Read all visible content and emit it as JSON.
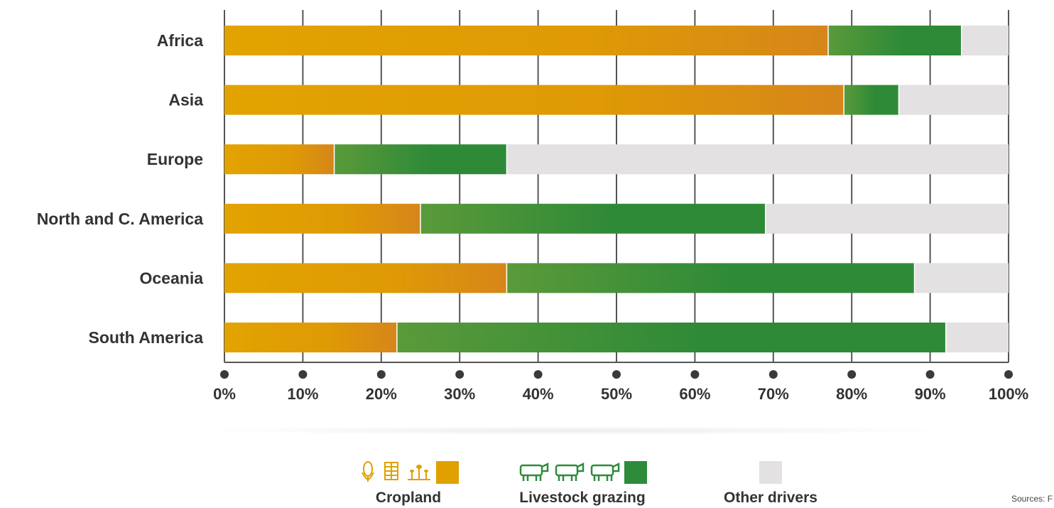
{
  "chart_data": {
    "type": "bar",
    "orientation": "horizontal",
    "stacked": true,
    "categories": [
      "Africa",
      "Asia",
      "Europe",
      "North and C. America",
      "Oceania",
      "South America"
    ],
    "series": [
      {
        "name": "Cropland",
        "values": [
          77,
          79,
          14,
          25,
          36,
          22
        ],
        "color": "#e0a100"
      },
      {
        "name": "Livestock grazing",
        "values": [
          17,
          7,
          22,
          44,
          52,
          70
        ],
        "color": "#2e8b3a"
      },
      {
        "name": "Other drivers",
        "values": [
          6,
          14,
          64,
          31,
          12,
          8
        ],
        "color": "#e3e1e1"
      }
    ],
    "xlim": [
      0,
      100
    ],
    "x_ticks": [
      "0%",
      "10%",
      "20%",
      "30%",
      "40%",
      "50%",
      "60%",
      "70%",
      "80%",
      "90%",
      "100%"
    ],
    "grid": true,
    "legend_position": "bottom"
  },
  "legend": {
    "cropland": "Cropland",
    "livestock": "Livestock grazing",
    "other": "Other drivers"
  },
  "source_text": "Sources: F"
}
